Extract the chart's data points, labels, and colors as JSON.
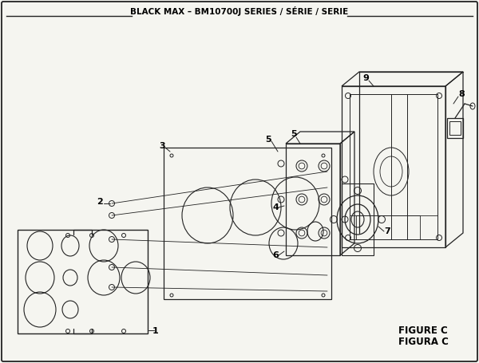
{
  "title": "BLACK MAX – BM10700J SERIES / SÉRIE / SERIE",
  "figure_label": "FIGURE C",
  "figura_label": "FIGURA C",
  "bg_color": "#f5f5f0",
  "border_color": "#222222",
  "line_color": "#222222"
}
